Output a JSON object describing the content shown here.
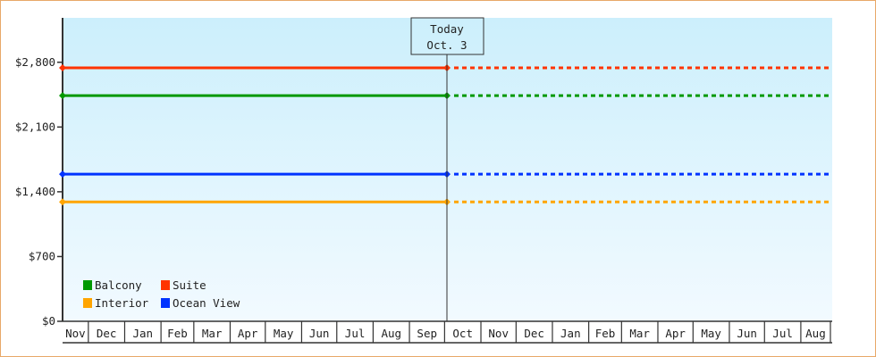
{
  "chart_data": {
    "type": "line",
    "title": "",
    "xlabel": "",
    "ylabel": "",
    "yticks": [
      "$0",
      "$700",
      "$1,400",
      "$2,100",
      "$2,800"
    ],
    "ytick_values": [
      0,
      700,
      1400,
      2100,
      2800
    ],
    "ylim": [
      0,
      3280
    ],
    "xticks": [
      "Nov",
      "Dec",
      "Jan",
      "Feb",
      "Mar",
      "Apr",
      "May",
      "Jun",
      "Jul",
      "Aug",
      "Sep",
      "Oct",
      "Nov",
      "Dec",
      "Jan",
      "Feb",
      "Mar",
      "Apr",
      "May",
      "Jun",
      "Jul",
      "Aug"
    ],
    "today_marker": {
      "line1": "Today",
      "line2": "Oct. 3"
    },
    "legend_position": "bottom-left",
    "grid": false,
    "series": [
      {
        "name": "Balcony",
        "color": "#009900",
        "value": 2440,
        "solid_until": "today",
        "dotted_after": "today"
      },
      {
        "name": "Suite",
        "color": "#ff3300",
        "value": 2740,
        "solid_until": "today",
        "dotted_after": "today"
      },
      {
        "name": "Interior",
        "color": "#ffa500",
        "value": 1290,
        "solid_until": "today",
        "dotted_after": "today"
      },
      {
        "name": "Ocean View",
        "color": "#0033ff",
        "value": 1590,
        "solid_until": "today",
        "dotted_after": "today"
      }
    ],
    "background_gradient": [
      "#cceffc",
      "#f2faff"
    ]
  }
}
